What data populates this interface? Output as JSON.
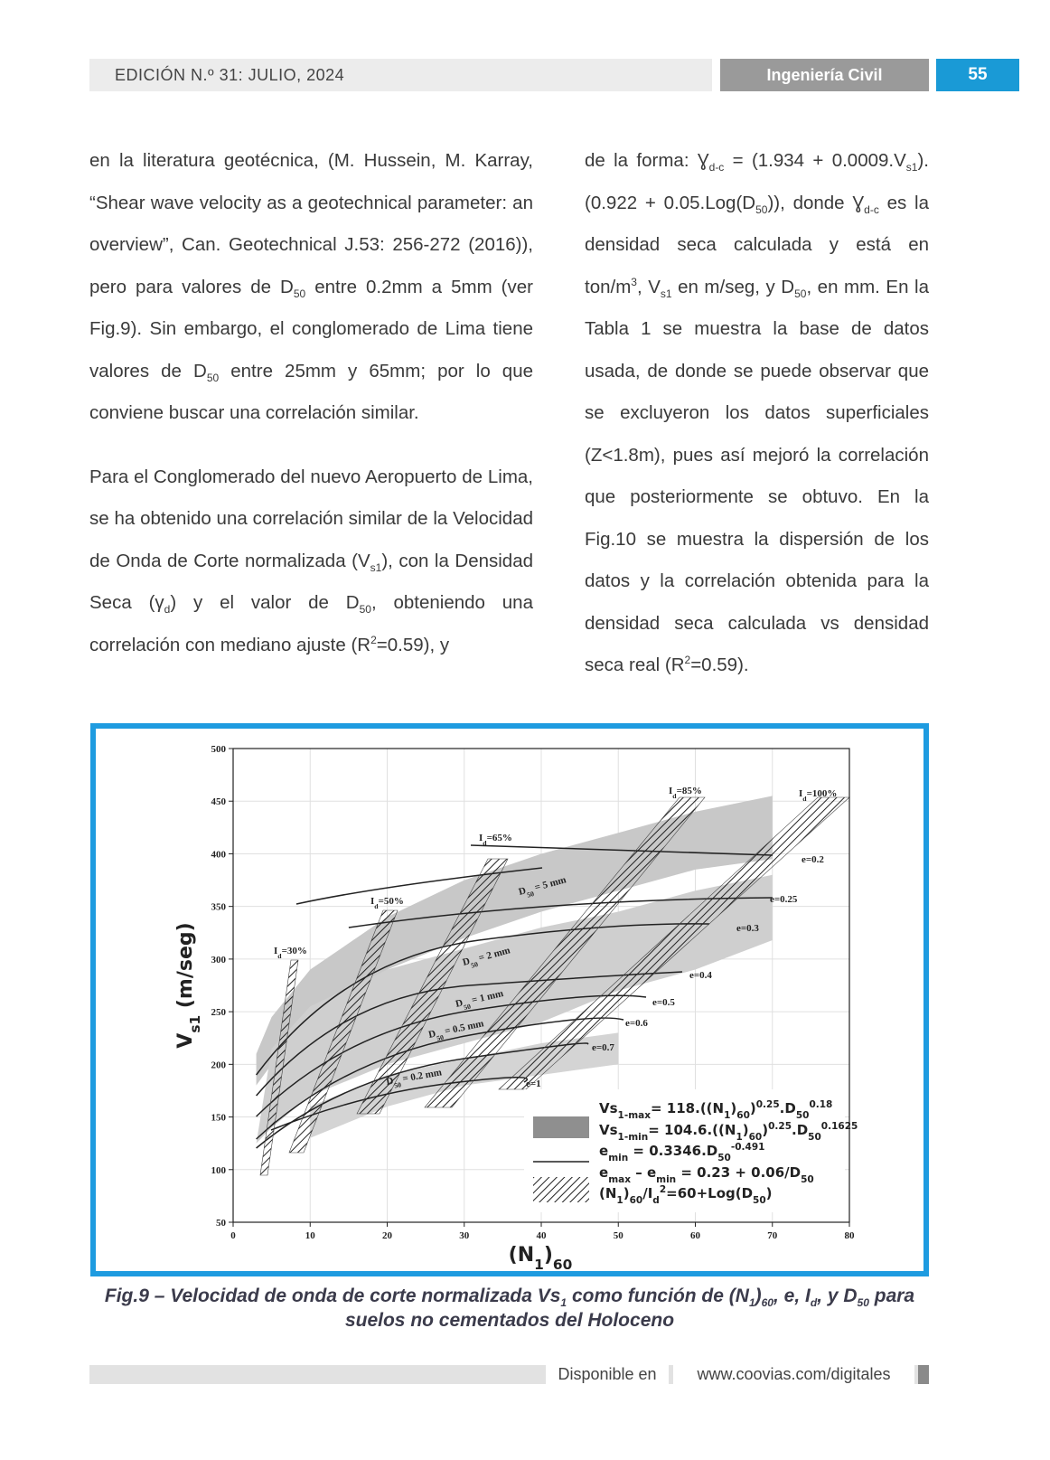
{
  "header": {
    "edition": "EDICIÓN N.º 31: JULIO, 2024",
    "section": "Ingeniería Civil",
    "page": "55"
  },
  "columns": {
    "left": [
      [
        "en la literatura geotécnica, (M. Hussein, M. Karray, “Shear wave velocity as a geotechnical parameter: an overview”, Can. Geotechnical J.53: 256-272 (2016)), pero para valores de D",
        {
          "sub": "50"
        },
        " entre 0.2mm a 5mm (ver Fig.9). Sin embargo, el conglomerado de Lima tiene valores de D",
        {
          "sub": "50"
        },
        " entre 25mm y 65mm; por lo que conviene buscar una correlación similar."
      ],
      [
        "Para el Conglomerado del nuevo Aeropuerto de Lima, se ha obtenido una correlación similar de la Velocidad de Onda de Corte normalizada (V",
        {
          "sub": "s1"
        },
        "), con la Densidad Seca (γ",
        {
          "sub": "d"
        },
        ") y el valor de D",
        {
          "sub": "50"
        },
        ", obteniendo una correlación con mediano ajuste (R",
        {
          "sup": "2"
        },
        "=0.59), y"
      ]
    ],
    "right": [
      [
        "de la forma: Ɣ",
        {
          "sub": "d-c"
        },
        " = (1.934 + 0.0009.V",
        {
          "sub": "s1"
        },
        "). (0.922 + 0.05.Log(D",
        {
          "sub": "50"
        },
        ")), donde Ɣ",
        {
          "sub": "d-c"
        },
        " es la densidad seca calculada y está en ton/m",
        {
          "sup": "3"
        },
        ", V",
        {
          "sub": "s1"
        },
        " en m/seg, y D",
        {
          "sub": "50"
        },
        ", en mm. En la Tabla 1 se muestra la base de datos usada, de donde se puede observar que se excluyeron los datos superficiales (Z<1.8m), pues así mejoró la correlación que posteriormente se obtuvo. En la Fig.10 se muestra la dispersión de los datos y la correlación obtenida para la densidad seca calculada vs densidad seca real (R",
        {
          "sup": "2"
        },
        "=0.59)."
      ]
    ]
  },
  "figure": {
    "y_label": [
      "V",
      {
        "sub": "s1"
      },
      " (m/seg)"
    ],
    "x_label": [
      "(N",
      {
        "sub": "1"
      },
      ")",
      {
        "sub": "60"
      }
    ],
    "xlim": [
      0,
      80
    ],
    "ylim": [
      50,
      500
    ],
    "xticks": [
      0,
      10,
      20,
      30,
      40,
      50,
      60,
      70,
      80
    ],
    "yticks": [
      50,
      100,
      150,
      200,
      250,
      300,
      350,
      400,
      450,
      500
    ],
    "annotations": [
      [
        "I",
        {
          "sub": "d"
        },
        "=30%"
      ],
      [
        "I",
        {
          "sub": "d"
        },
        "=50%"
      ],
      [
        "I",
        {
          "sub": "d"
        },
        "=65%"
      ],
      [
        "I",
        {
          "sub": "d"
        },
        "=85%"
      ],
      [
        "I",
        {
          "sub": "d"
        },
        "=100%"
      ],
      [
        "D",
        {
          "sub": "50"
        },
        " = 5 mm"
      ],
      [
        "D",
        {
          "sub": "50"
        },
        " = 2 mm"
      ],
      [
        "D",
        {
          "sub": "50"
        },
        " = 1 mm"
      ],
      [
        "D",
        {
          "sub": "50"
        },
        " = 0.5 mm"
      ],
      [
        "D",
        {
          "sub": "50"
        },
        " = 0.2 mm"
      ],
      [
        "e=0.2"
      ],
      [
        "e=0.25"
      ],
      [
        "e=0.3"
      ],
      [
        "e=0.4"
      ],
      [
        "e=0.5"
      ],
      [
        "e=0.6"
      ],
      [
        "e=0.7"
      ],
      [
        "e=1"
      ]
    ],
    "legend": [
      [
        "Vs",
        {
          "sub": "1-max"
        },
        "= 118.((N",
        {
          "sub": "1"
        },
        ")",
        {
          "sub": "60"
        },
        ")",
        {
          "sup": "0.25"
        },
        ".D",
        {
          "sub": "50"
        },
        {
          "sup": "0.18"
        }
      ],
      [
        "Vs",
        {
          "sub": "1-min"
        },
        "= 104.6.((N",
        {
          "sub": "1"
        },
        ")",
        {
          "sub": "60"
        },
        ")",
        {
          "sup": "0.25"
        },
        ".D",
        {
          "sub": "50"
        },
        {
          "sup": "0.1625"
        }
      ],
      [
        "e",
        {
          "sub": "min"
        },
        " = 0.3346.D",
        {
          "sub": "50"
        },
        {
          "sup": "-0.491"
        }
      ],
      [
        "e",
        {
          "sub": "max"
        },
        " – e",
        {
          "sub": "min"
        },
        " = 0.23 + 0.06/D",
        {
          "sub": "50"
        }
      ],
      [
        "(N",
        {
          "sub": "1"
        },
        ")",
        {
          "sub": "60"
        },
        "/I",
        {
          "sub": "d"
        },
        {
          "sup": "2"
        },
        "=60+Log(D",
        {
          "sub": "50"
        },
        ")"
      ]
    ],
    "caption": [
      "Fig.9 – Velocidad de onda de corte normalizada Vs",
      {
        "sub": "1"
      },
      " como función de (N",
      {
        "sub": "1"
      },
      ")",
      {
        "sub": "60"
      },
      ", e, I",
      {
        "sub": "d"
      },
      ", y D",
      {
        "sub": "50"
      },
      " para suelos no cementados del Holoceno"
    ]
  },
  "footer": {
    "available": "Disponible en",
    "url": "www.coovias.com/digitales"
  }
}
